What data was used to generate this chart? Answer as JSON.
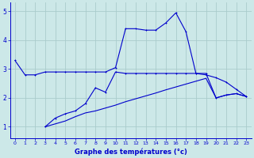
{
  "title": "Graphe des températures (°c)",
  "bg_color": "#cce8e8",
  "line_color": "#0000cc",
  "grid_color": "#aacccc",
  "xlim": [
    -0.5,
    23.5
  ],
  "ylim": [
    0.6,
    5.3
  ],
  "xticks": [
    0,
    1,
    2,
    3,
    4,
    5,
    6,
    7,
    8,
    9,
    10,
    11,
    12,
    13,
    14,
    15,
    16,
    17,
    18,
    19,
    20,
    21,
    22,
    23
  ],
  "yticks": [
    1,
    2,
    3,
    4,
    5
  ],
  "series1_x": [
    0,
    1,
    2,
    3,
    4,
    5,
    6,
    7,
    8,
    9,
    10,
    11,
    12,
    13,
    14,
    15,
    16,
    17,
    18,
    19,
    20,
    21,
    22,
    23
  ],
  "series1_y": [
    3.3,
    2.8,
    2.8,
    2.9,
    2.9,
    2.9,
    2.9,
    2.9,
    2.9,
    2.9,
    3.05,
    4.4,
    4.4,
    4.35,
    4.35,
    4.6,
    4.95,
    4.3,
    2.85,
    2.8,
    2.7,
    2.55,
    2.3,
    2.05
  ],
  "series2_x": [
    3,
    4,
    5,
    6,
    7,
    8,
    9,
    10,
    11,
    12,
    13,
    14,
    15,
    16,
    17,
    18,
    19,
    20,
    21,
    22,
    23
  ],
  "series2_y": [
    1.0,
    1.3,
    1.45,
    1.55,
    1.8,
    2.35,
    2.2,
    2.9,
    2.85,
    2.85,
    2.85,
    2.85,
    2.85,
    2.85,
    2.85,
    2.85,
    2.85,
    2.0,
    2.1,
    2.15,
    2.05
  ],
  "series3_x": [
    3,
    4,
    5,
    6,
    7,
    8,
    9,
    10,
    11,
    12,
    13,
    14,
    15,
    16,
    17,
    18,
    19,
    20,
    21,
    22,
    23
  ],
  "series3_y": [
    1.0,
    1.1,
    1.2,
    1.35,
    1.48,
    1.55,
    1.65,
    1.75,
    1.87,
    1.97,
    2.07,
    2.17,
    2.28,
    2.38,
    2.48,
    2.58,
    2.68,
    2.0,
    2.1,
    2.15,
    2.05
  ]
}
